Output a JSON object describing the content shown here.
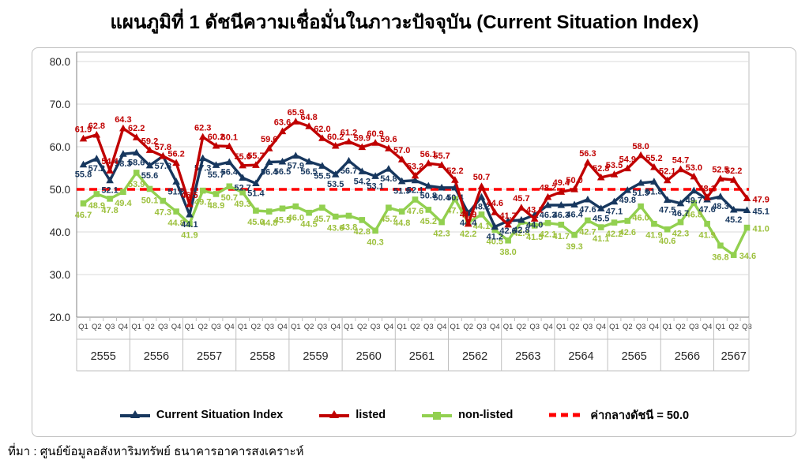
{
  "title": "แผนภูมิที่ 1 ดัชนีความเชื่อมั่นในภาวะปัจจุบัน (Current Situation Index)",
  "source": "ที่มา : ศูนย์ข้อมูลอสังหาริมทรัพย์ ธนาคารอาคารสงเคราะห์",
  "legend": {
    "csi_label": "Current Situation Index",
    "listed_label": "listed",
    "nonlisted_label": "non-listed",
    "midline_label": "ค่ากลางดัชนี = 50.0"
  },
  "colors": {
    "csi": "#17375E",
    "listed": "#C00000",
    "nonlisted": "#92D050",
    "reference": "#FF0000",
    "grid": "#D9D9D9",
    "axis": "#808080",
    "frame": "#BFBFBF",
    "tick_text": "#262626"
  },
  "chart_data": {
    "type": "line",
    "title": "แผนภูมิที่ 1 ดัชนีความเชื่อมั่นในภาวะปัจจุบัน (Current Situation Index)",
    "grid": true,
    "legend_position": "bottom",
    "y_axis": {
      "min": 20,
      "max": 80,
      "step": 10,
      "tick_labels": [
        "80.0",
        "70.0",
        "60.0",
        "50.0",
        "40.0",
        "30.0",
        "20.0"
      ]
    },
    "x_axis": {
      "quarter_labels": [
        "Q1",
        "Q2",
        "Q3",
        "Q4"
      ],
      "years": [
        {
          "label": "2555",
          "quarters": 4
        },
        {
          "label": "2556",
          "quarters": 4
        },
        {
          "label": "2557",
          "quarters": 4
        },
        {
          "label": "2558",
          "quarters": 4
        },
        {
          "label": "2559",
          "quarters": 4
        },
        {
          "label": "2560",
          "quarters": 4
        },
        {
          "label": "2561",
          "quarters": 4
        },
        {
          "label": "2562",
          "quarters": 4
        },
        {
          "label": "2563",
          "quarters": 4
        },
        {
          "label": "2564",
          "quarters": 4
        },
        {
          "label": "2565",
          "quarters": 4
        },
        {
          "label": "2566",
          "quarters": 4
        },
        {
          "label": "2567",
          "quarters": 3
        }
      ]
    },
    "reference_line": {
      "value": 50.0,
      "label": "ค่ากลางดัชนี = 50.0"
    },
    "series": [
      {
        "name": "non-listed",
        "marker": "square",
        "color": "#92D050",
        "values": [
          46.7,
          48.9,
          47.8,
          49.4,
          53.9,
          50.1,
          47.3,
          44.8,
          41.9,
          49.7,
          48.9,
          50.7,
          49.3,
          45.0,
          44.8,
          45.5,
          46.0,
          44.5,
          45.7,
          43.6,
          43.8,
          42.8,
          40.3,
          45.7,
          44.8,
          47.6,
          45.2,
          42.3,
          47.7,
          42.2,
          44.1,
          40.5,
          38.0,
          42.4,
          41.5,
          42.1,
          41.7,
          39.3,
          42.7,
          41.1,
          42.2,
          42.6,
          46.0,
          41.9,
          40.6,
          42.3,
          46.8,
          41.9,
          36.8,
          34.6,
          41.0
        ]
      },
      {
        "name": "Current Situation Index",
        "marker": "triangle",
        "color": "#17375E",
        "values": [
          55.8,
          57.2,
          52.1,
          58.3,
          58.6,
          55.6,
          57.8,
          51.8,
          44.1,
          57.3,
          55.7,
          56.4,
          52.7,
          51.4,
          56.4,
          56.5,
          57.9,
          56.5,
          55.5,
          53.5,
          56.7,
          54.2,
          53.1,
          54.8,
          51.9,
          52.1,
          50.8,
          50.4,
          50.4,
          44.4,
          48.2,
          41.2,
          42.6,
          42.8,
          44.0,
          46.3,
          46.3,
          46.4,
          47.6,
          45.5,
          47.1,
          49.8,
          51.5,
          51.8,
          47.5,
          46.7,
          49.7,
          47.6,
          48.3,
          45.2,
          45.1
        ]
      },
      {
        "name": "listed",
        "marker": "triangle",
        "color": "#C00000",
        "values": [
          61.9,
          62.8,
          54.4,
          64.3,
          62.2,
          59.2,
          57.8,
          56.2,
          46.5,
          62.3,
          60.2,
          60.1,
          55.6,
          55.7,
          59.6,
          63.6,
          65.9,
          64.8,
          62.0,
          60.2,
          61.2,
          59.9,
          60.9,
          59.6,
          57.0,
          53.2,
          56.1,
          55.7,
          52.2,
          41.9,
          50.7,
          44.6,
          41.7,
          45.7,
          43.1,
          48.2,
          49.4,
          50.0,
          56.3,
          52.8,
          53.5,
          54.9,
          58.0,
          55.2,
          52.1,
          54.7,
          53.0,
          48.1,
          52.5,
          52.2,
          47.9
        ]
      }
    ]
  }
}
